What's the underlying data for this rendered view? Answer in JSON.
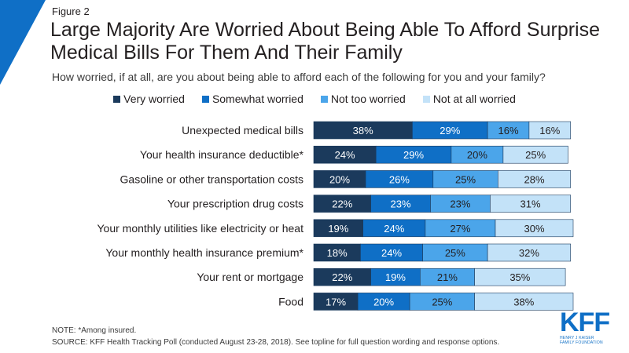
{
  "header": {
    "figure_label": "Figure 2",
    "title": "Large Majority Are Worried About Being Able To Afford Surprise Medical Bills For Them And Their Family",
    "subtitle": "How worried, if at all, are you about being able to afford each of the following for you and your family?"
  },
  "colors": {
    "very_worried": "#1b3a5c",
    "somewhat_worried": "#0f6fc6",
    "not_too_worried": "#4ba5ea",
    "not_at_all_worried": "#c3e2f8",
    "corner_accent": "#0f6fc6"
  },
  "chart_data": {
    "type": "bar",
    "orientation": "horizontal",
    "stacked": true,
    "categories": [
      "Unexpected medical bills",
      "Your health insurance deductible*",
      "Gasoline or other transportation costs",
      "Your prescription drug costs",
      "Your monthly utilities like electricity or heat",
      "Your monthly health insurance premium*",
      "Your rent or mortgage",
      "Food"
    ],
    "series": [
      {
        "name": "Very worried",
        "values": [
          38,
          24,
          20,
          22,
          19,
          18,
          22,
          17
        ]
      },
      {
        "name": "Somewhat worried",
        "values": [
          29,
          29,
          26,
          23,
          24,
          24,
          19,
          20
        ]
      },
      {
        "name": "Not too worried",
        "values": [
          16,
          20,
          25,
          23,
          27,
          25,
          21,
          25
        ]
      },
      {
        "name": "Not at all worried",
        "values": [
          16,
          25,
          28,
          31,
          30,
          32,
          35,
          38
        ]
      }
    ],
    "value_suffix": "%",
    "legend_position": "top",
    "grid": false
  },
  "footer": {
    "note": "NOTE: *Among insured.",
    "source": "SOURCE: KFF Health Tracking Poll (conducted August 23-28, 2018). See topline for full question wording and response options."
  },
  "logo": {
    "text": "KFF",
    "subtext_line1": "HENRY J KAISER",
    "subtext_line2": "FAMILY FOUNDATION"
  }
}
